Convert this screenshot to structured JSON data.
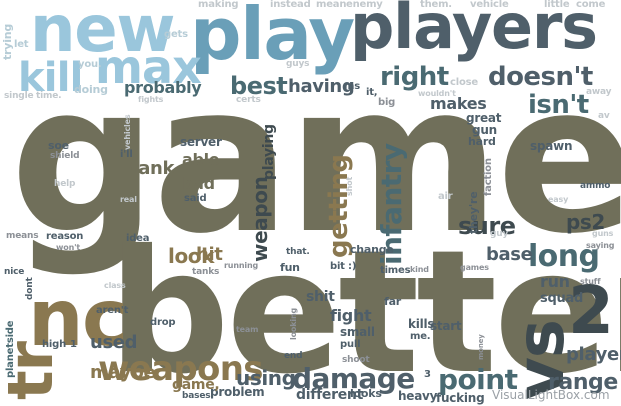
{
  "words": {
    "game": "game",
    "better": "better",
    "players": "players",
    "play": "play",
    "new": "new",
    "kill": "kill",
    "max": "max",
    "nc": "nc",
    "tr": "tr",
    "vs": "vs",
    "n2": "2",
    "weapons": "weapons",
    "damage": "damage",
    "point": "point",
    "long": "long",
    "right": "right",
    "doesnt": "doesn't",
    "isnt": "isn't",
    "best": "best",
    "infantry": "infantry",
    "getting": "getting",
    "weapon": "weapon",
    "playing": "playing",
    "sure": "sure",
    "base": "base",
    "range": "range",
    "player": "player",
    "using": "using",
    "used": "used",
    "maybe": "maybe",
    "look": "look",
    "having": "having",
    "probably": "probably",
    "makes": "makes",
    "ps2": "ps2",
    "tank": "tank",
    "able": "able",
    "bad": "bad",
    "hit": "hit",
    "fight": "fight",
    "shit": "shit",
    "run": "run",
    "squad": "squad",
    "different": "different",
    "fucking": "fucking",
    "heavy": "heavy",
    "kills": "kills",
    "me": "me.",
    "making": "making",
    "instead": "instead",
    "mean": "mean",
    "enemy": "enemy",
    "them": "them.",
    "vehicle": "vehicle",
    "little": "little",
    "come": "come",
    "trying": "trying",
    "let": "let",
    "gets": "gets",
    "you": "you.",
    "guys": "guys",
    "single": "single",
    "time": "time.",
    "doing": "doing",
    "fights": "fights",
    "certs": "certs",
    "wouldnt": "wouldn't",
    "close": "close",
    "ms": "ms",
    "it": "it,",
    "big": "big",
    "great": "great",
    "gun": "gun",
    "hard": "hard",
    "away": "away",
    "av": "av",
    "soe": "soe",
    "shield": "shield",
    "help": "help",
    "vehicles": "vehicles",
    "ill": "i'll",
    "server": "server",
    "said": "said",
    "shot": "shot",
    "spawn": "spawn",
    "faction": "faction",
    "air": "air",
    "ammo": "ammo",
    "easy": "easy",
    "means": "means",
    "reason": "reason",
    "wont": "won't",
    "idea": "idea",
    "real": "real",
    "thats": "that.",
    "change": "change",
    "theyre": "they're",
    "guy": "guy",
    "guns": "guns",
    "saying": "saying",
    "nice": "nice",
    "class": "class",
    "tanks": "tanks",
    "running": "running",
    "fun": "fun",
    "bit": "bit :)",
    "times": "times",
    "kind": "kind",
    "games": "games",
    "stuff": "stuff",
    "planetside": "planetside",
    "dont": "dont",
    "arent": "aren't",
    "drop": "drop",
    "high": "high",
    "far": "far",
    "small": "small",
    "pull": "pull",
    "start": "start",
    "team": "team",
    "looking": "looking",
    "end": "end",
    "shoot": "shoot",
    "looks": "looks",
    "money": "money",
    "problem": "problem",
    "bases": "bases",
    "game_p": "game,",
    "three": "3",
    "one": "1"
  },
  "watermark": "VisualLightBox.com",
  "colors": {
    "olive": "#706f5a",
    "brown": "#8a7850",
    "teal": "#4a6a72",
    "slate": "#4f5f6a",
    "sky": "#9ac6dc",
    "dark": "#3e4a4f"
  }
}
